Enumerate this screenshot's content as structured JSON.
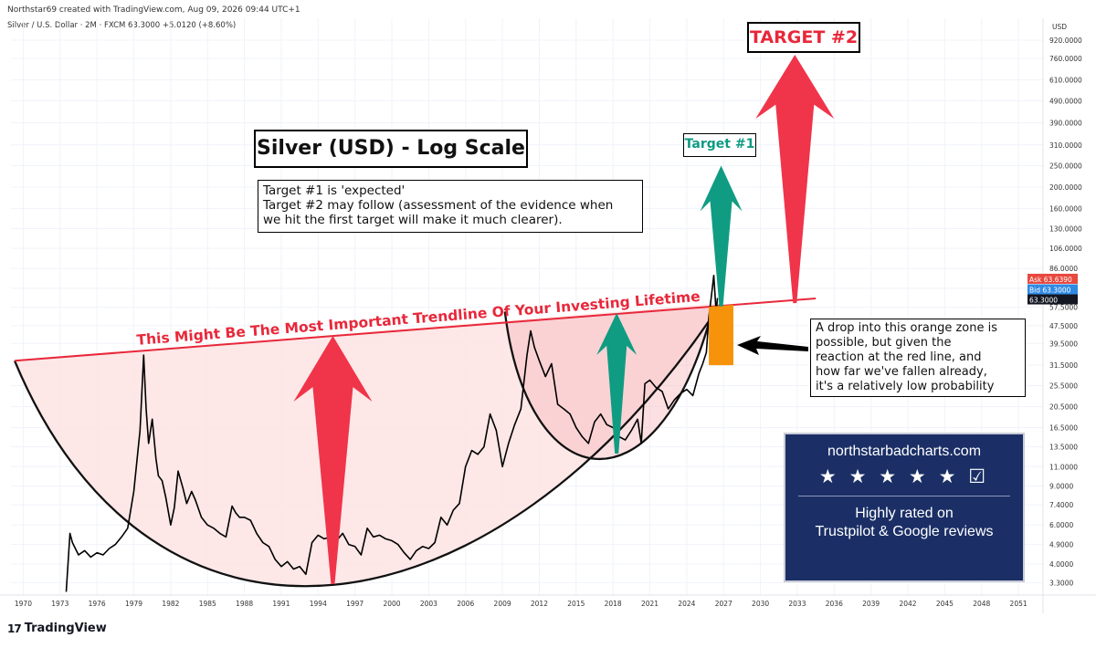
{
  "header": {
    "created_by": "Northstar69 created with TradingView.com, Aug 09, 2026 09:44 UTC+1",
    "symbol_line": "Silver / U.S. Dollar · 2M · FXCM  63.3000  +5.0120 (+8.60%)",
    "currency": "USD"
  },
  "annotations": {
    "title": "Silver (USD) - Log Scale",
    "note_lines": [
      "Target #1 is 'expected'",
      "Target #2 may follow (assessment of the evidence when",
      "we hit the first target will make it much clearer)."
    ],
    "target1": "Target #1",
    "target2": "TARGET #2",
    "trendline_label": "This Might Be The Most Important Trendline Of Your Investing Lifetime",
    "zone_note_lines": [
      "A drop into this orange zone is",
      "possible, but given the",
      "reaction at the red line, and",
      "how far we've fallen already,",
      "it's a relatively low probability"
    ]
  },
  "badge": {
    "site": "northstarbadcharts.com",
    "stars": "★ ★ ★ ★ ★ ☑",
    "line1": "Highly rated on",
    "line2": "Trustpilot & Google reviews"
  },
  "price_tags": {
    "ask_label": "Ask",
    "ask_value": "63.6390",
    "bid_label": "Bid",
    "bid_value": "63.3000",
    "last_value": "63.3000"
  },
  "branding": {
    "logo_text": "TradingView",
    "logo_mark": "17"
  },
  "colors": {
    "price": "#000000",
    "trendline": "#e8283a",
    "cup_fill": "#fde3e3",
    "target1_arrow": "#109c82",
    "target2_arrow": "#f0344a",
    "zone": "#f7930a",
    "badge_bg": "#1b2f66"
  },
  "chart_data": {
    "type": "line",
    "scale": "log",
    "title": "Silver (USD) - Log Scale",
    "xlabel": "",
    "ylabel": "",
    "x_ticks": [
      "1970",
      "1973",
      "1976",
      "1979",
      "1982",
      "1985",
      "1988",
      "1991",
      "1994",
      "1997",
      "2000",
      "2003",
      "2006",
      "2009",
      "2012",
      "2015",
      "2018",
      "2021",
      "2024",
      "2027",
      "2030",
      "2033",
      "2036",
      "2039",
      "2042",
      "2045",
      "2048",
      "2051"
    ],
    "y_ticks": [
      "920.0000",
      "760.0000",
      "610.0000",
      "490.0000",
      "390.0000",
      "310.0000",
      "250.0000",
      "200.0000",
      "160.0000",
      "130.0000",
      "106.0000",
      "86.0000",
      "70.0000",
      "57.5000",
      "47.5000",
      "39.5000",
      "31.5000",
      "25.5000",
      "20.5000",
      "16.5000",
      "13.5000",
      "11.0000",
      "9.0000",
      "7.4000",
      "6.0000",
      "4.9000",
      "4.0000",
      "3.3000"
    ],
    "xlim": [
      1969,
      2053
    ],
    "ylim": [
      2.9,
      1050
    ],
    "series": [
      {
        "x": [
          1973.5,
          1973.8,
          1974.0,
          1974.5,
          1975.0,
          1975.5,
          1976.0,
          1976.5,
          1977.0,
          1977.5,
          1978.0,
          1978.5,
          1979.0,
          1979.5,
          1979.8,
          1980.0,
          1980.2,
          1980.5,
          1980.8,
          1981.0,
          1981.3,
          1981.6,
          1982.0,
          1982.3,
          1982.6,
          1983.0,
          1983.3,
          1983.7,
          1984.0,
          1984.5,
          1985.0,
          1985.5,
          1986.0,
          1986.5,
          1987.0,
          1987.3,
          1987.6,
          1988.0,
          1988.5,
          1989.0,
          1989.5,
          1990.0,
          1990.5,
          1991.0,
          1991.5,
          1992.0,
          1992.5,
          1993.0,
          1993.5,
          1994.0,
          1994.5,
          1995.0,
          1995.5,
          1996.0,
          1996.5,
          1997.0,
          1997.5,
          1998.0,
          1998.5,
          1999.0,
          1999.5,
          2000.0,
          2000.5,
          2001.0,
          2001.5,
          2002.0,
          2002.5,
          2003.0,
          2003.5,
          2004.0,
          2004.5,
          2005.0,
          2005.5,
          2006.0,
          2006.5,
          2007.0,
          2007.5,
          2008.0,
          2008.5,
          2009.0,
          2009.5,
          2010.0,
          2010.5,
          2011.0,
          2011.3,
          2011.6,
          2012.0,
          2012.5,
          2013.0,
          2013.5,
          2014.0,
          2014.5,
          2015.0,
          2015.5,
          2016.0,
          2016.5,
          2017.0,
          2017.5,
          2018.0,
          2018.5,
          2019.0,
          2019.5,
          2020.0,
          2020.3,
          2020.6,
          2021.0,
          2021.5,
          2022.0,
          2022.5,
          2023.0,
          2023.5,
          2024.0,
          2024.5,
          2025.0,
          2025.3,
          2025.6,
          2025.8,
          2026.0,
          2026.2,
          2026.4,
          2026.5
        ],
        "y": [
          3.0,
          5.5,
          5.0,
          4.4,
          4.6,
          4.3,
          4.5,
          4.4,
          4.7,
          4.9,
          5.3,
          5.8,
          8.5,
          16.0,
          35.0,
          20.0,
          14.0,
          18.0,
          12.0,
          10.0,
          9.5,
          8.0,
          6.0,
          7.2,
          10.5,
          8.8,
          7.5,
          8.5,
          7.8,
          6.5,
          6.0,
          5.8,
          5.5,
          5.3,
          7.3,
          6.8,
          6.5,
          6.5,
          6.3,
          5.5,
          5.0,
          4.8,
          4.2,
          3.9,
          4.1,
          3.8,
          3.9,
          3.6,
          5.0,
          5.4,
          5.2,
          5.3,
          5.1,
          5.5,
          4.9,
          4.8,
          4.4,
          5.8,
          5.3,
          5.4,
          5.2,
          5.1,
          4.9,
          4.5,
          4.2,
          4.6,
          4.8,
          4.7,
          5.0,
          6.5,
          6.0,
          7.0,
          7.5,
          11.0,
          13.0,
          12.5,
          13.5,
          19.0,
          16.0,
          11.0,
          14.0,
          17.0,
          20.0,
          35.0,
          45.0,
          38.0,
          33.0,
          28.0,
          32.0,
          21.0,
          20.0,
          19.0,
          16.5,
          15.0,
          14.0,
          17.5,
          19.0,
          17.0,
          16.5,
          15.0,
          14.5,
          16.0,
          18.0,
          14.0,
          26.0,
          27.0,
          25.0,
          24.0,
          20.0,
          22.0,
          23.5,
          24.5,
          23.0,
          29.0,
          32.0,
          36.0,
          52.0,
          64.0,
          80.0,
          54.0,
          63.3
        ]
      }
    ],
    "trendline": {
      "x": [
        1969.3,
        2034.5
      ],
      "y": [
        33.0,
        63.0
      ],
      "label": "This Might Be The Most Important Trendline Of Your Investing Lifetime"
    },
    "targets": [
      {
        "label": "Target #1",
        "x": 2026.8,
        "from": 58.0,
        "to": 250.0
      },
      {
        "label": "TARGET #2",
        "x": 2032.8,
        "from": 60.0,
        "to": 790.0
      }
    ],
    "orange_zone": {
      "x": [
        2025.8,
        2027.8
      ],
      "y": [
        31.5,
        60.0
      ]
    },
    "price_labels": {
      "ask": 63.639,
      "bid": 63.3,
      "last": 63.3
    },
    "grid": true
  }
}
